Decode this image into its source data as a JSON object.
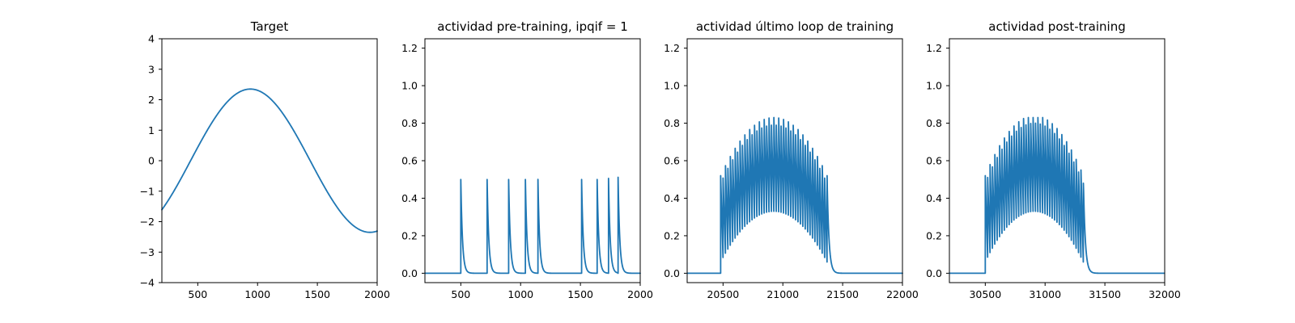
{
  "colors": {
    "series": "#1f77b4",
    "axis": "#000000",
    "background": "#ffffff"
  },
  "chart_data": [
    {
      "type": "line",
      "title": "Target",
      "xlabel": "",
      "ylabel": "",
      "xlim": [
        200,
        2000
      ],
      "ylim": [
        -4,
        4
      ],
      "xticks": [
        500,
        1000,
        1500,
        2000
      ],
      "yticks": [
        -4,
        -3,
        -2,
        -1,
        0,
        1,
        2,
        3,
        4
      ],
      "ytick_labels": [
        "−4",
        "−3",
        "−2",
        "−1",
        "0",
        "1",
        "2",
        "3",
        "4"
      ],
      "grid": false,
      "signal": {
        "kind": "sine",
        "amplitude": 2.35,
        "period": 2000,
        "peak_x": 940,
        "x_start": 200,
        "x_end": 2000
      }
    },
    {
      "type": "line",
      "title": "actividad pre-training, ipqif = 1",
      "xlabel": "",
      "ylabel": "",
      "xlim": [
        200,
        2000
      ],
      "ylim": [
        -0.05,
        1.25
      ],
      "xticks": [
        500,
        1000,
        1500,
        2000
      ],
      "yticks": [
        0.0,
        0.2,
        0.4,
        0.6,
        0.8,
        1.0,
        1.2
      ],
      "ytick_labels": [
        "0.0",
        "0.2",
        "0.4",
        "0.6",
        "0.8",
        "1.0",
        "1.2"
      ],
      "grid": false,
      "signal": {
        "kind": "spikes",
        "decay": 14,
        "x_start": 200,
        "x_end": 2000,
        "spikes": [
          [
            500,
            0.5
          ],
          [
            720,
            0.5
          ],
          [
            900,
            0.5
          ],
          [
            1040,
            0.5
          ],
          [
            1145,
            0.5
          ],
          [
            1510,
            0.5
          ],
          [
            1640,
            0.5
          ],
          [
            1735,
            0.505
          ],
          [
            1815,
            0.51
          ]
        ]
      }
    },
    {
      "type": "line",
      "title": "actividad último loop de training",
      "xlabel": "",
      "ylabel": "",
      "xlim": [
        20200,
        22000
      ],
      "ylim": [
        -0.05,
        1.25
      ],
      "xticks": [
        20500,
        21000,
        21500,
        22000
      ],
      "yticks": [
        0.0,
        0.2,
        0.4,
        0.6,
        0.8,
        1.0,
        1.2
      ],
      "ytick_labels": [
        "0.0",
        "0.2",
        "0.4",
        "0.6",
        "0.8",
        "1.0",
        "1.2"
      ],
      "grid": false,
      "signal": {
        "kind": "burst",
        "x_start": 20200,
        "x_end": 22000,
        "burst_start": 20480,
        "burst_end": 21370,
        "n_spikes": 45,
        "peak_max": 0.81,
        "peak_min": 0.5,
        "trough_min": 0.06,
        "trough_max": 0.33,
        "decay": 16
      }
    },
    {
      "type": "line",
      "title": "actividad post-training",
      "xlabel": "",
      "ylabel": "",
      "xlim": [
        30200,
        32000
      ],
      "ylim": [
        -0.05,
        1.25
      ],
      "xticks": [
        30500,
        31000,
        31500,
        32000
      ],
      "yticks": [
        0.0,
        0.2,
        0.4,
        0.6,
        0.8,
        1.0,
        1.2
      ],
      "ytick_labels": [
        "0.0",
        "0.2",
        "0.4",
        "0.6",
        "0.8",
        "1.0",
        "1.2"
      ],
      "grid": false,
      "signal": {
        "kind": "burst",
        "x_start": 30200,
        "x_end": 32000,
        "burst_start": 30500,
        "burst_end": 31320,
        "n_spikes": 42,
        "peak_max": 0.82,
        "peak_min": 0.5,
        "trough_min": 0.06,
        "trough_max": 0.33,
        "decay": 16
      }
    }
  ]
}
